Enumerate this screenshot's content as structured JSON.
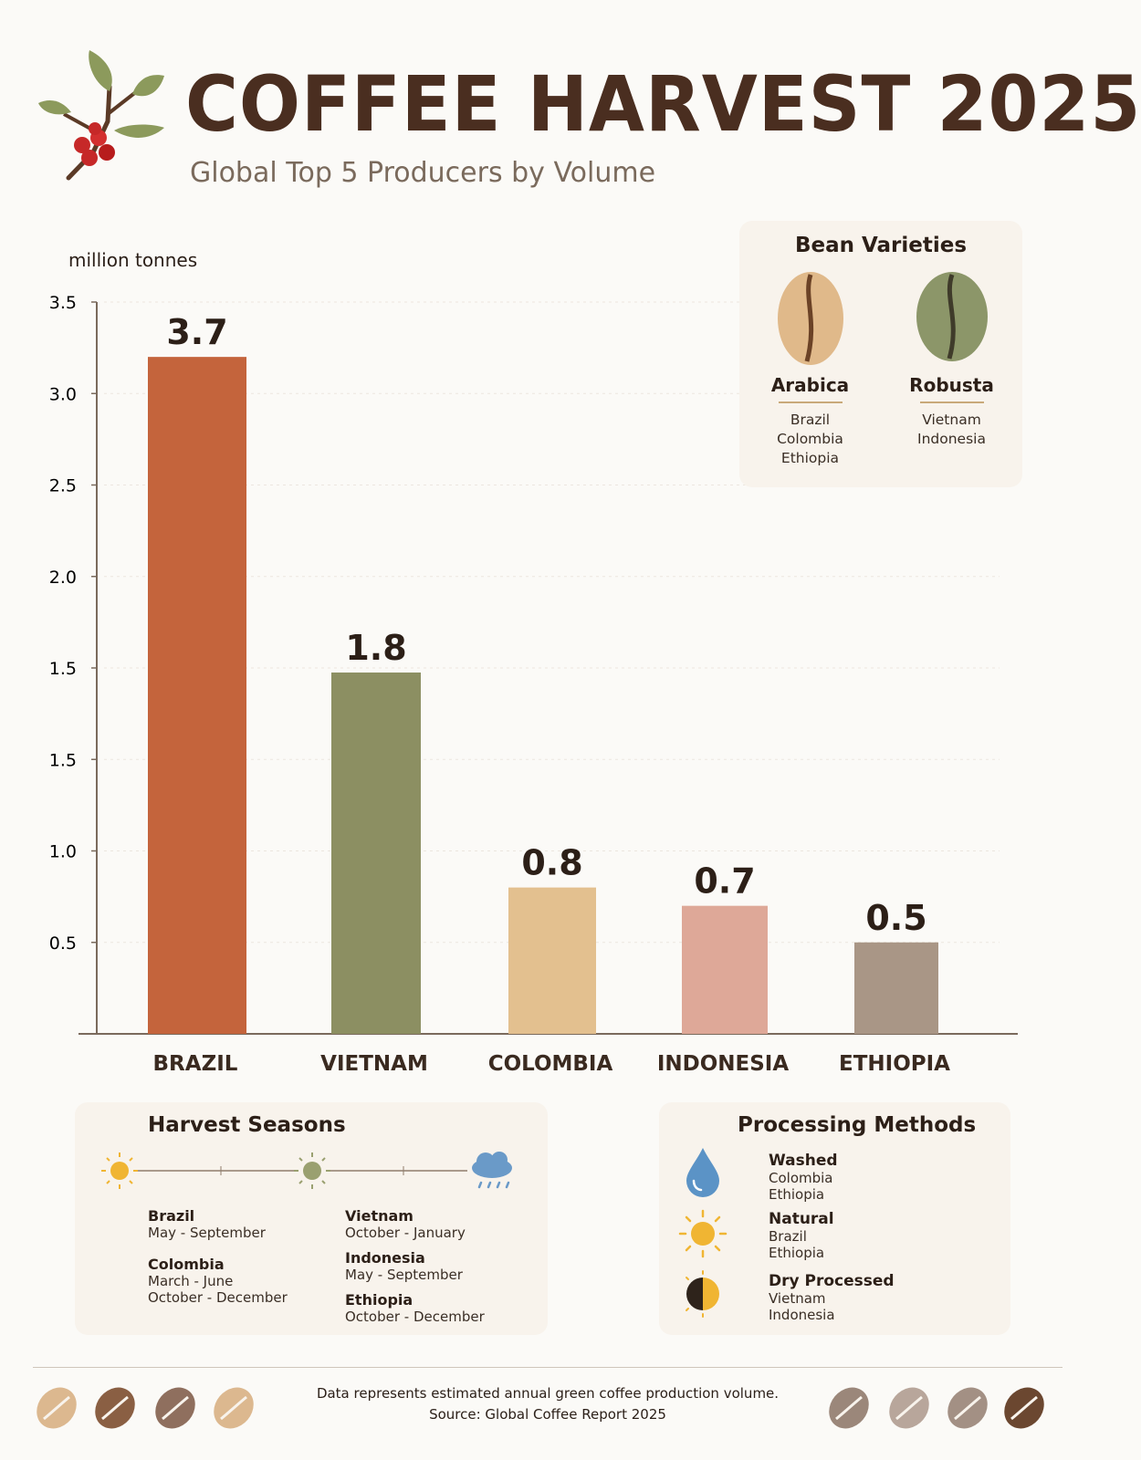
{
  "header": {
    "title": "COFFEE HARVEST 2025",
    "subtitle": "Global Top 5 Producers by Volume"
  },
  "chart_data": {
    "type": "bar",
    "ylabel": "million tonnes",
    "y_tick_labels": [
      "0.5",
      "1.0",
      "1.5",
      "1.5",
      "2.0",
      "2.5",
      "3.0",
      "3.5"
    ],
    "categories": [
      "BRAZIL",
      "VIETNAM",
      "COLOMBIA",
      "INDONESIA",
      "ETHIOPIA"
    ],
    "values": [
      3.7,
      1.8,
      0.8,
      0.7,
      0.5
    ],
    "value_labels": [
      "3.7",
      "1.8",
      "0.8",
      "0.7",
      "0.5"
    ],
    "colors": [
      "#c4643c",
      "#8c8f62",
      "#e3c08f",
      "#dea898",
      "#a99686"
    ],
    "grid": true
  },
  "bean_varieties": {
    "title": "Bean Varieties",
    "items": [
      {
        "name": "Arabica",
        "countries": [
          "Brazil",
          "Colombia",
          "Ethiopia"
        ],
        "color": "#e0b98a"
      },
      {
        "name": "Robusta",
        "countries": [
          "Vietnam",
          "Indonesia"
        ],
        "color": "#8c9669"
      }
    ]
  },
  "harvest_seasons": {
    "title": "Harvest Seasons",
    "left": [
      {
        "country": "Brazil",
        "lines": [
          "May - September"
        ]
      },
      {
        "country": "Colombia",
        "lines": [
          "March - June",
          "October - December"
        ]
      }
    ],
    "right": [
      {
        "country": "Vietnam",
        "lines": [
          "October - January"
        ]
      },
      {
        "country": "Indonesia",
        "lines": [
          "May - September"
        ]
      },
      {
        "country": "Ethiopia",
        "lines": [
          "October - December"
        ]
      }
    ]
  },
  "processing_methods": {
    "title": "Processing Methods",
    "items": [
      {
        "name": "Washed",
        "countries": [
          "Colombia",
          "Ethiopia"
        ],
        "icon": "water-drop-icon"
      },
      {
        "name": "Natural",
        "countries": [
          "Brazil",
          "Ethiopia"
        ],
        "icon": "sun-icon"
      },
      {
        "name": "Dry Processed",
        "countries": [
          "Vietnam",
          "Indonesia"
        ],
        "icon": "half-circle-icon"
      }
    ]
  },
  "footer": {
    "line1": "Data represents estimated annual green coffee production volume.",
    "line2": "Source: Global Coffee Report 2025"
  }
}
